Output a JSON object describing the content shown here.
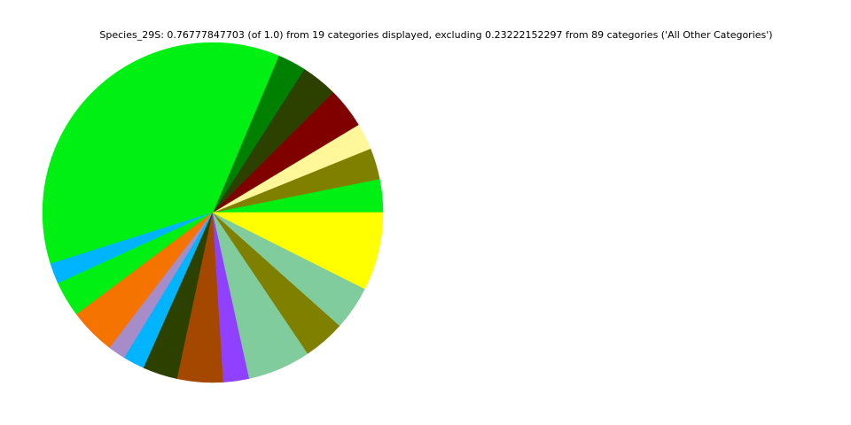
{
  "chart_data": {
    "type": "pie",
    "title": "Species_29S: 0.76777847703 (of 1.0) from 19 categories displayed, excluding 0.23222152297 from 89 categories ('All Other Categories')",
    "start_angle_deg": 0,
    "direction": "counterclockwise",
    "legend": "none",
    "slices": [
      {
        "value": 0.0243,
        "color": "#00f014"
      },
      {
        "value": 0.0228,
        "color": "#808000"
      },
      {
        "value": 0.0192,
        "color": "#fff799"
      },
      {
        "value": 0.0296,
        "color": "#800000"
      },
      {
        "value": 0.0267,
        "color": "#2c4000"
      },
      {
        "value": 0.0207,
        "color": "#008000"
      },
      {
        "value": 0.2781,
        "color": "#00f014"
      },
      {
        "value": 0.0151,
        "color": "#00b4ff"
      },
      {
        "value": 0.026,
        "color": "#00f014"
      },
      {
        "value": 0.0339,
        "color": "#f57300"
      },
      {
        "value": 0.0128,
        "color": "#a68cc8"
      },
      {
        "value": 0.0156,
        "color": "#00b4ff"
      },
      {
        "value": 0.0254,
        "color": "#2c4000"
      },
      {
        "value": 0.0333,
        "color": "#a44800"
      },
      {
        "value": 0.0188,
        "color": "#9040ff"
      },
      {
        "value": 0.0459,
        "color": "#80cc9c"
      },
      {
        "value": 0.0305,
        "color": "#808000"
      },
      {
        "value": 0.0322,
        "color": "#80cc9c"
      },
      {
        "value": 0.0569,
        "color": "#ffff00"
      }
    ]
  }
}
